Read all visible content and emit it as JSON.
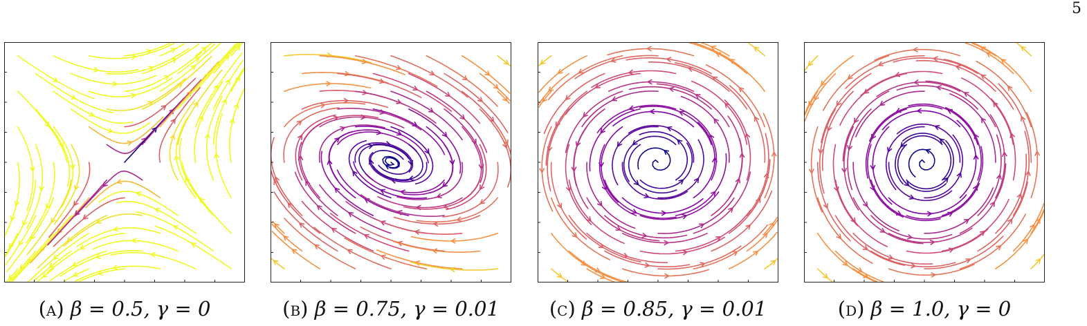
{
  "page_number": "5",
  "panels": [
    {
      "tag": "(a)",
      "caption": "β = 0.5, γ = 0"
    },
    {
      "tag": "(b)",
      "caption": "β = 0.75, γ = 0.01"
    },
    {
      "tag": "(c)",
      "caption": "β = 0.85, γ = 0.01"
    },
    {
      "tag": "(d)",
      "caption": "β = 1.0, γ = 0"
    }
  ],
  "colormap": [
    "#0d0887",
    "#7e03a8",
    "#cc4778",
    "#f89540",
    "#f0f921"
  ]
}
